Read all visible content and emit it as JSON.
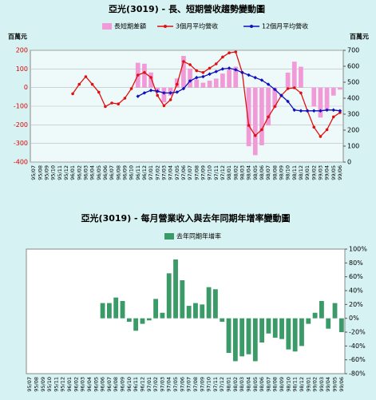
{
  "chart_data": [
    {
      "type": "bar",
      "title": "亞光(3019) - 長、短期營收趨勢變動圖",
      "y_label": "百萬元",
      "y2_label": "百萬元",
      "categories": [
        "95/07",
        "95/08",
        "95/09",
        "95/10",
        "95/11",
        "95/12",
        "96/01",
        "96/02",
        "96/03",
        "96/04",
        "96/05",
        "96/06",
        "96/07",
        "96/08",
        "96/09",
        "96/10",
        "96/11",
        "96/12",
        "97/01",
        "97/02",
        "97/03",
        "97/04",
        "97/05",
        "97/06",
        "97/07",
        "97/08",
        "97/09",
        "97/10",
        "97/11",
        "97/12",
        "98/01",
        "98/02",
        "98/03",
        "98/04",
        "98/05",
        "98/06",
        "98/07",
        "98/08",
        "98/09",
        "98/10",
        "98/11",
        "98/12",
        "99/01",
        "99/02",
        "99/03",
        "99/04",
        "99/05",
        "99/06"
      ],
      "ylim": [
        -400,
        200
      ],
      "yticks": [
        -400,
        -300,
        -200,
        -100,
        0,
        100,
        200
      ],
      "y2lim": [
        0,
        700
      ],
      "y2ticks": [
        0,
        100,
        200,
        300,
        400,
        500,
        600,
        700
      ],
      "grid": true,
      "series": [
        {
          "name": "長短期差額",
          "type": "bar",
          "axis": "y",
          "color": "#f09ad8",
          "values": [
            null,
            null,
            null,
            null,
            null,
            null,
            null,
            null,
            null,
            null,
            null,
            null,
            null,
            null,
            null,
            null,
            133,
            128,
            81,
            -27,
            -80,
            -43,
            49,
            170,
            102,
            43,
            26,
            37,
            48,
            75,
            96,
            112,
            0,
            -315,
            -363,
            -310,
            -204,
            -107,
            0,
            80,
            139,
            112,
            0,
            -102,
            -161,
            -123,
            -43,
            -11
          ]
        },
        {
          "name": "3個月平均營收",
          "type": "line",
          "axis": "y2",
          "color": "#e01010",
          "values": [
            null,
            null,
            null,
            null,
            null,
            null,
            428,
            487,
            535,
            487,
            438,
            348,
            370,
            364,
            400,
            460,
            545,
            561,
            530,
            417,
            353,
            390,
            487,
            630,
            610,
            572,
            561,
            588,
            615,
            658,
            684,
            690,
            561,
            230,
            166,
            203,
            283,
            348,
            417,
            460,
            465,
            433,
            321,
            219,
            160,
            203,
            283,
            310
          ]
        },
        {
          "name": "12個月平均營收",
          "type": "line",
          "axis": "y2",
          "color": "#1010c0",
          "values": [
            null,
            null,
            null,
            null,
            null,
            null,
            null,
            null,
            null,
            null,
            null,
            null,
            null,
            null,
            null,
            null,
            412,
            433,
            449,
            444,
            433,
            433,
            438,
            460,
            508,
            529,
            535,
            551,
            567,
            583,
            588,
            578,
            561,
            545,
            529,
            513,
            487,
            455,
            417,
            380,
            326,
            321,
            321,
            321,
            321,
            326,
            326,
            321
          ]
        }
      ]
    },
    {
      "type": "bar",
      "title": "亞光(3019) - 每月營業收入與去年同期年增率變動圖",
      "categories": [
        "95/07",
        "95/08",
        "95/09",
        "95/10",
        "95/11",
        "95/12",
        "96/01",
        "96/02",
        "96/03",
        "96/04",
        "96/05",
        "96/06",
        "96/07",
        "96/08",
        "96/09",
        "96/10",
        "96/11",
        "96/12",
        "97/01",
        "97/02",
        "97/03",
        "97/04",
        "97/05",
        "97/06",
        "97/07",
        "97/08",
        "97/09",
        "97/10",
        "97/11",
        "97/12",
        "98/01",
        "98/02",
        "98/03",
        "98/04",
        "98/05",
        "98/06",
        "98/07",
        "98/08",
        "98/09",
        "98/10",
        "98/11",
        "98/12",
        "99/01",
        "99/02",
        "99/03",
        "99/04",
        "99/05",
        "99/06"
      ],
      "y2lim": [
        -80,
        100
      ],
      "y2ticks": [
        {
          "value": -80,
          "label": "-80%"
        },
        {
          "value": -60,
          "label": "-60%"
        },
        {
          "value": -40,
          "label": "-40%"
        },
        {
          "value": -20,
          "label": "-20%"
        },
        {
          "value": 0,
          "label": "0%"
        },
        {
          "value": 20,
          "label": "20%"
        },
        {
          "value": 40,
          "label": "40%"
        },
        {
          "value": 60,
          "label": "60%"
        },
        {
          "value": 80,
          "label": "80%"
        },
        {
          "value": 100,
          "label": "100%"
        }
      ],
      "grid": false,
      "series": [
        {
          "name": "去年同期年增率",
          "type": "bar",
          "axis": "y2",
          "color": "#3a9a68",
          "values": [
            null,
            null,
            null,
            null,
            null,
            null,
            null,
            null,
            null,
            null,
            null,
            22,
            22,
            30,
            25,
            -5,
            -18,
            -8,
            -3,
            28,
            8,
            65,
            85,
            55,
            18,
            22,
            20,
            45,
            42,
            -5,
            -50,
            -62,
            -55,
            -52,
            -62,
            -35,
            -22,
            -28,
            -30,
            -45,
            -48,
            -40,
            -8,
            8,
            25,
            -15,
            22,
            -20
          ]
        }
      ]
    }
  ]
}
